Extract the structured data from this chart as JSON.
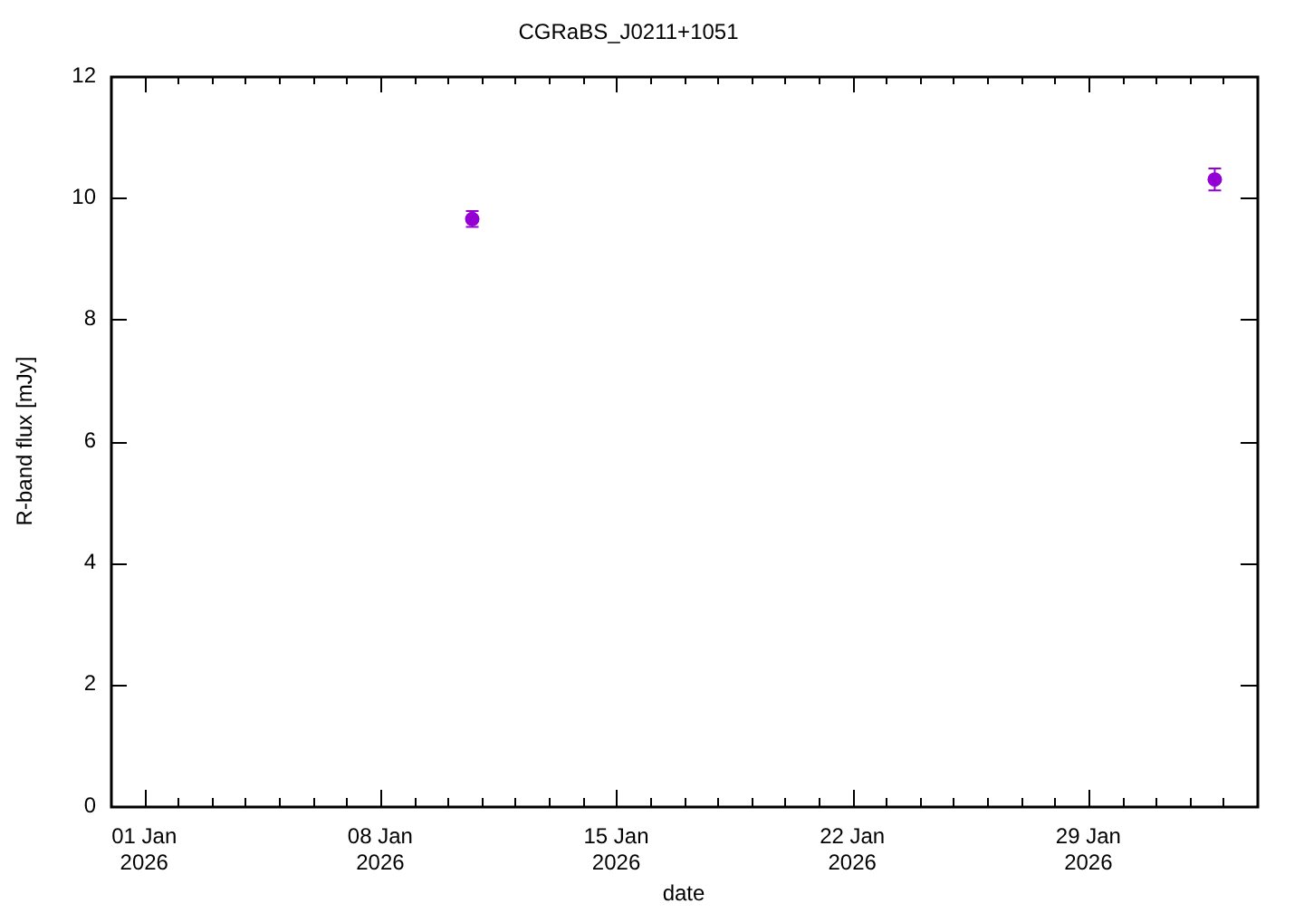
{
  "chart_data": {
    "type": "scatter",
    "title": "CGRaBS_J0211+1051",
    "xlabel": "date",
    "ylabel": "R-band flux [mJy]",
    "x": [
      "2026-01-10T17:30",
      "2026-02-01T18:00"
    ],
    "values": [
      9.65,
      10.3
    ],
    "errors": [
      0.13,
      0.18
    ],
    "color": "#9400d3",
    "marker": "circle",
    "xlim": [
      "2025-12-31",
      "2026-02-03"
    ],
    "xticks": [
      {
        "value": "2026-01-01",
        "label": "01 Jan\n2026"
      },
      {
        "value": "2026-01-02",
        "label": null
      },
      {
        "value": "2026-01-03",
        "label": null
      },
      {
        "value": "2026-01-04",
        "label": null
      },
      {
        "value": "2026-01-05",
        "label": null
      },
      {
        "value": "2026-01-06",
        "label": null
      },
      {
        "value": "2026-01-07",
        "label": null
      },
      {
        "value": "2026-01-08",
        "label": "08 Jan\n2026"
      },
      {
        "value": "2026-01-09",
        "label": null
      },
      {
        "value": "2026-01-10",
        "label": null
      },
      {
        "value": "2026-01-11",
        "label": null
      },
      {
        "value": "2026-01-12",
        "label": null
      },
      {
        "value": "2026-01-13",
        "label": null
      },
      {
        "value": "2026-01-14",
        "label": null
      },
      {
        "value": "2026-01-15",
        "label": "15 Jan\n2026"
      },
      {
        "value": "2026-01-16",
        "label": null
      },
      {
        "value": "2026-01-17",
        "label": null
      },
      {
        "value": "2026-01-18",
        "label": null
      },
      {
        "value": "2026-01-19",
        "label": null
      },
      {
        "value": "2026-01-20",
        "label": null
      },
      {
        "value": "2026-01-21",
        "label": null
      },
      {
        "value": "2026-01-22",
        "label": "22 Jan\n2026"
      },
      {
        "value": "2026-01-23",
        "label": null
      },
      {
        "value": "2026-01-24",
        "label": null
      },
      {
        "value": "2026-01-25",
        "label": null
      },
      {
        "value": "2026-01-26",
        "label": null
      },
      {
        "value": "2026-01-27",
        "label": null
      },
      {
        "value": "2026-01-28",
        "label": null
      },
      {
        "value": "2026-01-29",
        "label": "29 Jan\n2026"
      },
      {
        "value": "2026-01-30",
        "label": null
      },
      {
        "value": "2026-01-31",
        "label": null
      },
      {
        "value": "2026-02-01",
        "label": null
      },
      {
        "value": "2026-02-02",
        "label": null
      }
    ],
    "ylim": [
      0,
      12
    ],
    "yticks": [
      0,
      2,
      4,
      6,
      8,
      10,
      12
    ],
    "grid": false,
    "legend": false
  }
}
